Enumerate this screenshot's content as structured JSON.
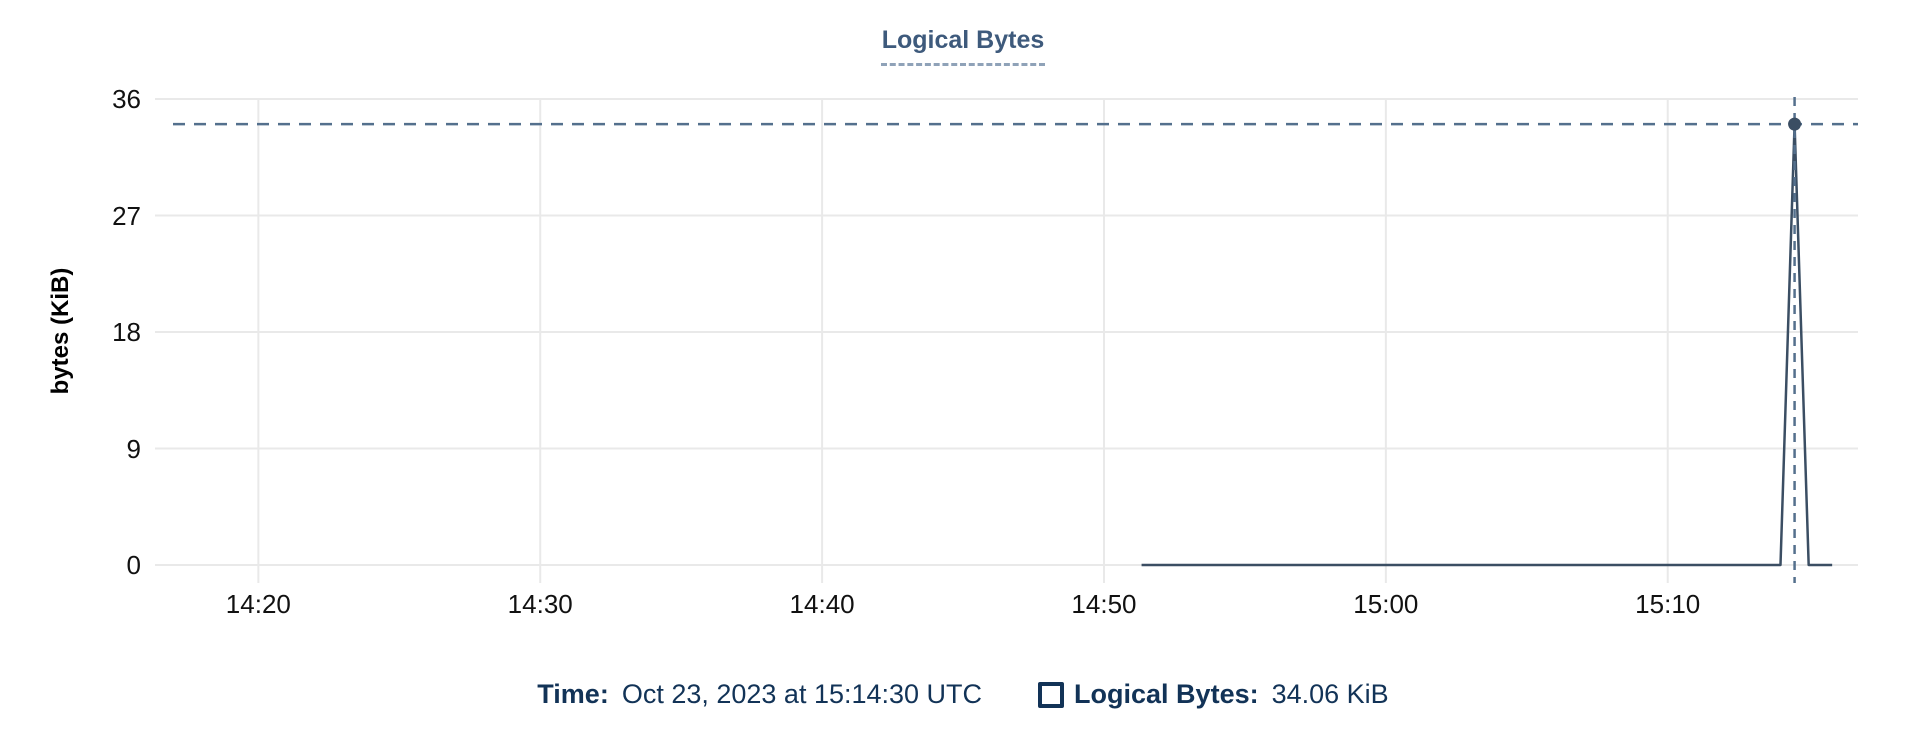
{
  "theme": {
    "background": "#ffffff",
    "line_color": "#3b4e63",
    "crosshair_color": "#54708d",
    "title_color": "#3e5a7c",
    "title_underline_color": "#8fa2b8",
    "grid_color": "#e9e9e9",
    "tick_color": "#111111",
    "axis_title_color": "#000000",
    "tooltip_color": "#123357"
  },
  "chart_data": {
    "type": "line",
    "title": "Logical Bytes",
    "xlabel": "",
    "ylabel": "bytes (KiB)",
    "ylim": [
      0,
      36
    ],
    "y_ticks": [
      0,
      9,
      18,
      27,
      36
    ],
    "x_ticks": [
      "14:20",
      "14:30",
      "14:40",
      "14:50",
      "15:00",
      "15:10"
    ],
    "x_range": [
      "14:16:20",
      "15:16:45"
    ],
    "grid": true,
    "legend_position": "bottom",
    "series": [
      {
        "name": "Logical Bytes",
        "points": [
          [
            "14:51:20",
            0
          ],
          [
            "15:14:00",
            0
          ],
          [
            "15:14:30",
            34.06
          ],
          [
            "15:15:00",
            0
          ],
          [
            "15:15:50",
            0
          ]
        ]
      }
    ],
    "selected_point": {
      "x": "15:14:30",
      "y": 34.06
    }
  },
  "tooltip": {
    "time_label": "Time:",
    "time_value": "Oct 23, 2023 at 15:14:30 UTC",
    "series_label": "Logical Bytes:",
    "series_value": "34.06 KiB"
  }
}
